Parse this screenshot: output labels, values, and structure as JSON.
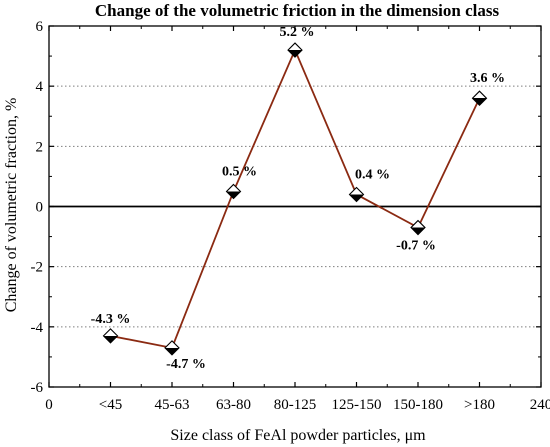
{
  "chart_data": {
    "type": "line",
    "title": "Change of the volumetric friction in the dimension class",
    "xlabel": "Size class of FeAl powder particles, μm",
    "ylabel": "Change of volumetric fraction, %",
    "x_axis_ticks": [
      "0",
      "<45",
      "45-63",
      "63-80",
      "80-125",
      "125-150",
      "150-180",
      ">180",
      "240"
    ],
    "categories": [
      "<45",
      "45-63",
      "63-80",
      "80-125",
      "125-150",
      "150-180",
      ">180"
    ],
    "series": [
      {
        "values": [
          -4.3,
          -4.7,
          0.5,
          5.2,
          0.4,
          -0.7,
          3.6
        ]
      }
    ],
    "data_labels": [
      "-4.3 %",
      "-4.7 %",
      "0.5 %",
      "5.2 %",
      "0.4 %",
      "-0.7 %",
      "3.6 %"
    ],
    "y_ticks": [
      -6,
      -4,
      -2,
      0,
      2,
      4,
      6
    ],
    "ylim": [
      -6,
      6
    ],
    "grid": "horizontal dotted at y ticks",
    "colors": {
      "line": "#8b2a12",
      "marker_fill_top": "#ffffff",
      "marker_fill_bottom": "#000000",
      "zero_line": "#000000"
    }
  }
}
